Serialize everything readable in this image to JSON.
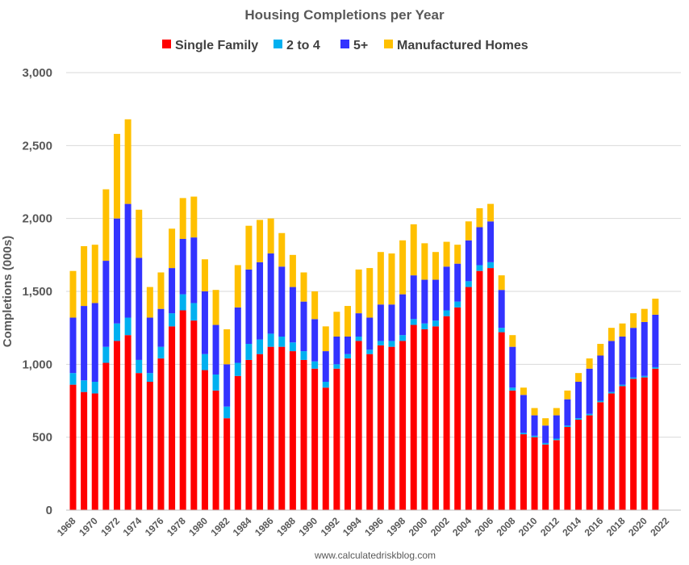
{
  "chart_data": {
    "type": "bar",
    "stacked": true,
    "title": "Housing Completions per Year",
    "ylabel": "Completions (000s)",
    "xlabel": "",
    "source": "www.calculatedriskblog.com",
    "ylim": [
      0,
      3000
    ],
    "yticks": [
      0,
      500,
      1000,
      1500,
      2000,
      2500,
      3000
    ],
    "ytick_labels": [
      "0",
      "500",
      "1,000",
      "1,500",
      "2,000",
      "2,500",
      "3,000"
    ],
    "xtick_labels": [
      "1968",
      "1970",
      "1972",
      "1974",
      "1976",
      "1978",
      "1980",
      "1982",
      "1984",
      "1986",
      "1988",
      "1990",
      "1992",
      "1994",
      "1996",
      "1998",
      "2000",
      "2002",
      "2004",
      "2006",
      "2008",
      "2010",
      "2012",
      "2014",
      "2016",
      "2018",
      "2020",
      "2022"
    ],
    "grid": true,
    "legend_position": "top",
    "categories": [
      1968,
      1969,
      1970,
      1971,
      1972,
      1973,
      1974,
      1975,
      1976,
      1977,
      1978,
      1979,
      1980,
      1981,
      1982,
      1983,
      1984,
      1985,
      1986,
      1987,
      1988,
      1989,
      1990,
      1991,
      1992,
      1993,
      1994,
      1995,
      1996,
      1997,
      1998,
      1999,
      2000,
      2001,
      2002,
      2003,
      2004,
      2005,
      2006,
      2007,
      2008,
      2009,
      2010,
      2011,
      2012,
      2013,
      2014,
      2015,
      2016,
      2017,
      2018,
      2019,
      2020,
      2021
    ],
    "series": [
      {
        "name": "Single Family",
        "color": "#ff0000",
        "values": [
          860,
          810,
          800,
          1010,
          1160,
          1200,
          940,
          880,
          1040,
          1260,
          1370,
          1300,
          960,
          820,
          630,
          920,
          1030,
          1070,
          1120,
          1120,
          1090,
          1030,
          970,
          840,
          970,
          1040,
          1160,
          1070,
          1130,
          1120,
          1160,
          1270,
          1240,
          1260,
          1330,
          1390,
          1530,
          1640,
          1660,
          1220,
          820,
          520,
          500,
          450,
          480,
          570,
          620,
          650,
          740,
          800,
          850,
          900,
          910,
          970
        ]
      },
      {
        "name": "2 to 4",
        "color": "#00b0f0",
        "values": [
          80,
          80,
          80,
          110,
          120,
          120,
          90,
          60,
          80,
          90,
          110,
          120,
          110,
          110,
          80,
          90,
          110,
          100,
          90,
          70,
          60,
          60,
          50,
          40,
          30,
          30,
          30,
          30,
          30,
          40,
          40,
          40,
          40,
          40,
          40,
          40,
          40,
          40,
          40,
          30,
          20,
          10,
          10,
          10,
          10,
          10,
          10,
          10,
          10,
          10,
          10,
          10,
          10,
          10
        ]
      },
      {
        "name": "5+",
        "color": "#3333ff",
        "values": [
          380,
          510,
          540,
          590,
          720,
          780,
          700,
          380,
          260,
          310,
          380,
          450,
          430,
          340,
          290,
          380,
          510,
          530,
          550,
          480,
          380,
          340,
          290,
          210,
          190,
          120,
          160,
          220,
          250,
          250,
          280,
          300,
          300,
          280,
          300,
          260,
          280,
          260,
          280,
          260,
          280,
          260,
          140,
          120,
          160,
          180,
          250,
          310,
          310,
          350,
          330,
          340,
          370,
          360
        ]
      },
      {
        "name": "Manufactured Homes",
        "color": "#ffc000",
        "values": [
          320,
          410,
          400,
          490,
          580,
          580,
          330,
          210,
          250,
          270,
          280,
          280,
          220,
          240,
          240,
          290,
          300,
          290,
          240,
          230,
          220,
          200,
          190,
          170,
          170,
          210,
          300,
          340,
          360,
          350,
          370,
          350,
          250,
          190,
          170,
          130,
          130,
          130,
          120,
          100,
          80,
          50,
          50,
          50,
          50,
          60,
          60,
          70,
          80,
          90,
          90,
          100,
          90,
          110
        ]
      }
    ]
  }
}
